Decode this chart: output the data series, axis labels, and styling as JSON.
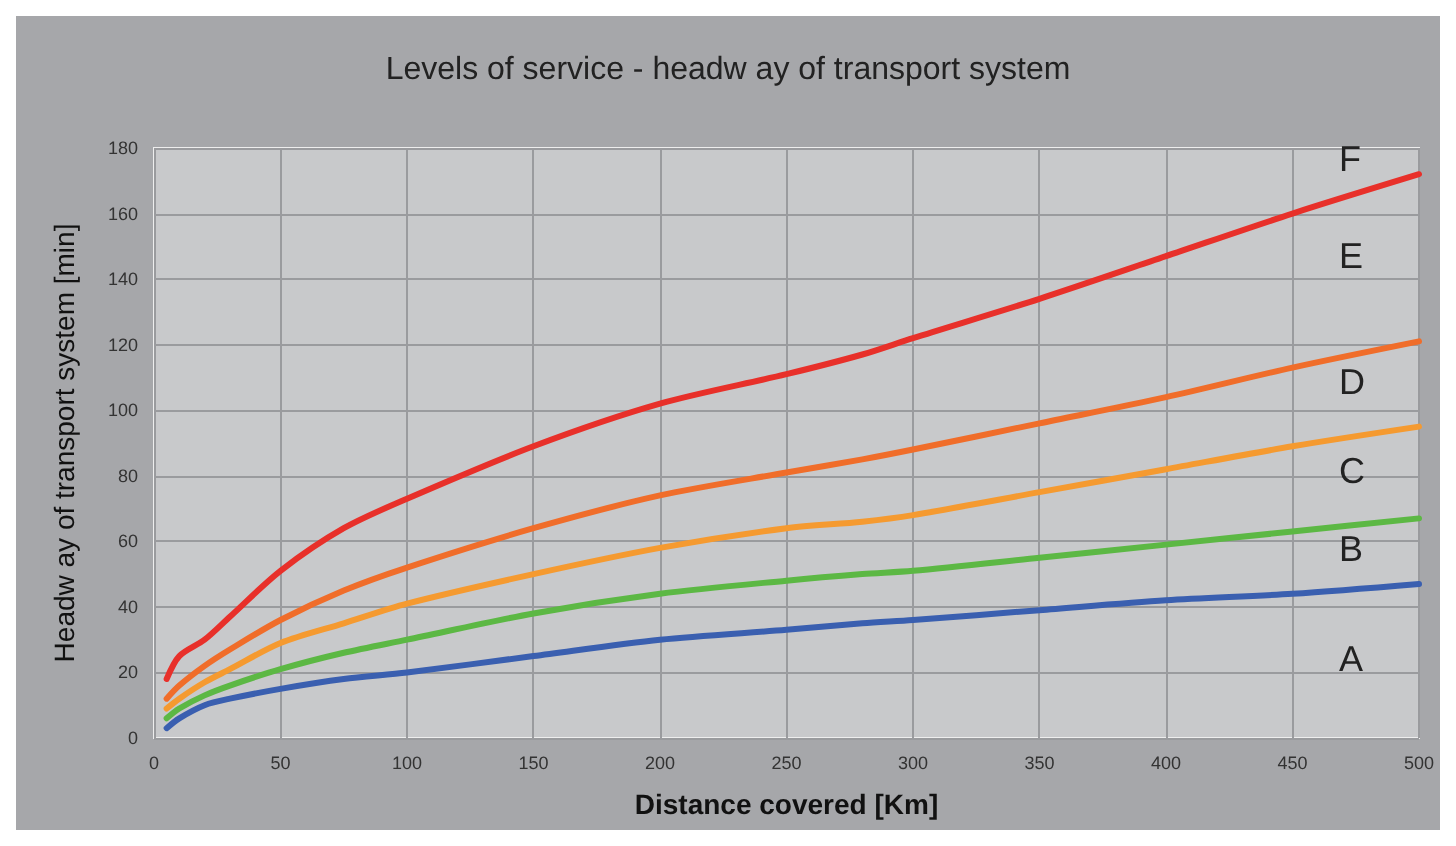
{
  "chart_data": {
    "type": "line",
    "title": "Levels of service - headw ay of transport system",
    "xlabel": "Distance covered [Km]",
    "ylabel": "Headw ay of transport system [min]",
    "x": [
      5,
      10,
      20,
      30,
      50,
      75,
      100,
      150,
      200,
      250,
      280,
      300,
      350,
      400,
      450,
      500
    ],
    "series": [
      {
        "color": "#3a5fb0",
        "values": [
          3,
          6,
          10,
          12,
          15,
          18,
          20,
          25,
          30,
          33,
          35,
          36,
          39,
          42,
          44,
          47
        ]
      },
      {
        "color": "#5cb844",
        "values": [
          6,
          9,
          13,
          16,
          21,
          26,
          30,
          38,
          44,
          48,
          50,
          51,
          55,
          59,
          63,
          67
        ]
      },
      {
        "color": "#f59a30",
        "values": [
          9,
          12,
          17,
          21,
          29,
          35,
          41,
          50,
          58,
          64,
          66,
          68,
          75,
          82,
          89,
          95
        ]
      },
      {
        "color": "#f06d2a",
        "values": [
          12,
          16,
          22,
          27,
          36,
          45,
          52,
          64,
          74,
          81,
          85,
          88,
          96,
          104,
          113,
          121
        ]
      },
      {
        "color": "#e8302a",
        "values": [
          18,
          25,
          30,
          37,
          51,
          64,
          73,
          89,
          102,
          111,
          117,
          122,
          134,
          147,
          160,
          172
        ]
      }
    ],
    "annotations": [
      "A",
      "B",
      "C",
      "D",
      "E",
      "F"
    ],
    "xlim": [
      0,
      500
    ],
    "xticks": [
      0,
      50,
      100,
      150,
      200,
      250,
      300,
      350,
      400,
      450,
      500
    ],
    "ylim": [
      0,
      180
    ],
    "yticks": [
      0,
      20,
      40,
      60,
      80,
      100,
      120,
      140,
      160,
      180
    ],
    "grid": true,
    "marker": "none",
    "line_style": "solid"
  }
}
